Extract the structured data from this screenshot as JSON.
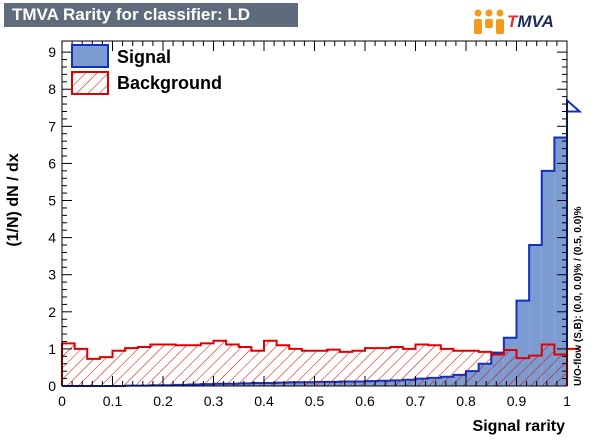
{
  "header": {
    "title": "TMVA Rarity for classifier: LD",
    "logo_first": "T",
    "logo_rest": "MVA"
  },
  "colors": {
    "signal_fill": "#7c9bd0",
    "signal_line": "#1030c0",
    "background_line": "#e00000",
    "title_bg": "#5d6b7d"
  },
  "chart_data": {
    "type": "histogram",
    "xlabel": "Signal rarity",
    "ylabel": "(1/N) dN / dx",
    "xlim": [
      0,
      1
    ],
    "ylim": [
      0,
      9.3
    ],
    "x_ticks": [
      "0",
      "0.1",
      "0.2",
      "0.3",
      "0.4",
      "0.5",
      "0.6",
      "0.7",
      "0.8",
      "0.9",
      "1"
    ],
    "y_ticks": [
      "0",
      "1",
      "2",
      "3",
      "4",
      "5",
      "6",
      "7",
      "8",
      "9"
    ],
    "bin_width": 0.025,
    "side_label": "U/O-flow (S,B): (0.0, 0.0)% / (0.5, 0.0)%",
    "series": [
      {
        "name": "Signal",
        "style": "filled",
        "values": [
          0,
          0,
          0,
          0,
          0,
          0.01,
          0.01,
          0.02,
          0.02,
          0.03,
          0.04,
          0.05,
          0.06,
          0.06,
          0.07,
          0.08,
          0.08,
          0.09,
          0.1,
          0.1,
          0.11,
          0.11,
          0.12,
          0.12,
          0.13,
          0.14,
          0.15,
          0.17,
          0.2,
          0.22,
          0.25,
          0.3,
          0.4,
          0.6,
          0.9,
          1.3,
          2.3,
          3.8,
          5.8,
          6.7,
          7.7,
          7.4
        ]
      },
      {
        "name": "Background",
        "style": "hatched",
        "values": [
          1.15,
          1.0,
          0.73,
          0.78,
          0.95,
          1.02,
          1.05,
          1.12,
          1.12,
          1.1,
          1.1,
          1.15,
          1.22,
          1.12,
          1.05,
          0.95,
          1.22,
          1.1,
          1.0,
          0.95,
          0.95,
          0.98,
          0.92,
          0.95,
          1.02,
          1.02,
          1.05,
          1.0,
          1.12,
          1.1,
          1.0,
          0.95,
          0.95,
          0.92,
          0.85,
          0.97,
          0.75,
          0.82,
          1.12,
          0.85,
          1.0,
          1.0
        ]
      }
    ],
    "legend": {
      "placement": "top-left"
    }
  }
}
